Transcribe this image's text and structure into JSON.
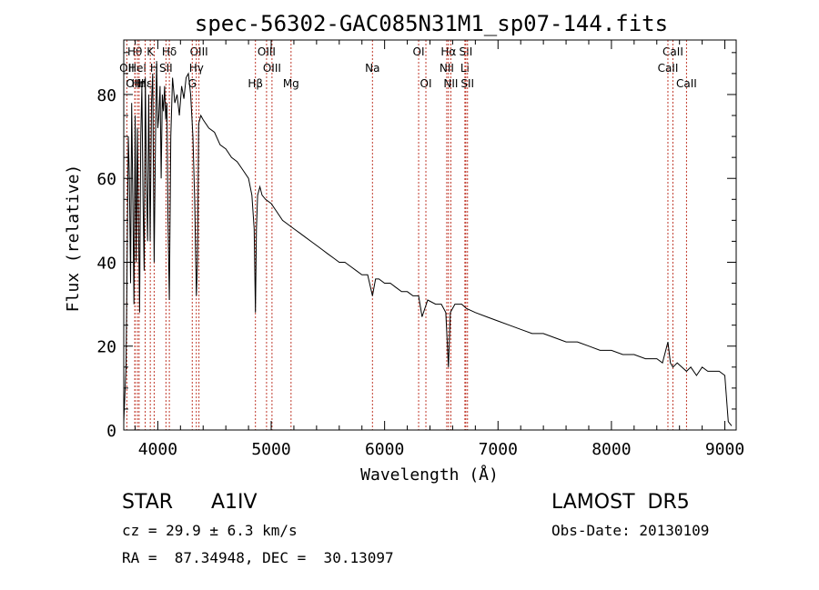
{
  "chart_data": {
    "type": "line",
    "title": "spec-56302-GAC085N31M1_sp07-144.fits",
    "xlabel": "Wavelength (Å)",
    "ylabel": "Flux (relative)",
    "xlim": [
      3700,
      9100
    ],
    "ylim": [
      0,
      93
    ],
    "x_ticks": [
      4000,
      5000,
      6000,
      7000,
      8000,
      9000
    ],
    "y_ticks": [
      0,
      20,
      40,
      60,
      80
    ],
    "grid": false,
    "series": [
      {
        "color": "#000000",
        "x": [
          3700,
          3720,
          3730,
          3740,
          3750,
          3760,
          3770,
          3780,
          3790,
          3800,
          3810,
          3820,
          3830,
          3840,
          3850,
          3860,
          3870,
          3880,
          3890,
          3900,
          3910,
          3920,
          3933,
          3945,
          3955,
          3968,
          3980,
          3990,
          4000,
          4010,
          4020,
          4030,
          4040,
          4050,
          4060,
          4070,
          4080,
          4090,
          4102,
          4115,
          4130,
          4150,
          4170,
          4190,
          4210,
          4230,
          4250,
          4270,
          4290,
          4310,
          4325,
          4340,
          4350,
          4360,
          4380,
          4400,
          4450,
          4500,
          4550,
          4600,
          4650,
          4700,
          4750,
          4800,
          4830,
          4850,
          4861,
          4870,
          4880,
          4900,
          4920,
          4950,
          5000,
          5050,
          5100,
          5150,
          5200,
          5250,
          5300,
          5350,
          5400,
          5450,
          5500,
          5550,
          5600,
          5650,
          5700,
          5750,
          5800,
          5850,
          5893,
          5920,
          5950,
          6000,
          6050,
          6100,
          6150,
          6200,
          6250,
          6300,
          6330,
          6380,
          6450,
          6500,
          6540,
          6563,
          6580,
          6620,
          6680,
          6720,
          6800,
          6900,
          7000,
          7100,
          7200,
          7300,
          7400,
          7500,
          7600,
          7700,
          7800,
          7900,
          8000,
          8100,
          8200,
          8300,
          8400,
          8450,
          8498,
          8520,
          8542,
          8580,
          8620,
          8662,
          8700,
          8750,
          8800,
          8850,
          8900,
          8950,
          9000,
          9030,
          9060
        ],
        "y": [
          2,
          15,
          40,
          70,
          60,
          35,
          78,
          55,
          30,
          75,
          40,
          72,
          50,
          28,
          70,
          82,
          55,
          38,
          84,
          60,
          45,
          80,
          45,
          78,
          85,
          40,
          70,
          88,
          72,
          75,
          82,
          60,
          80,
          76,
          82,
          74,
          78,
          50,
          31,
          70,
          84,
          78,
          80,
          75,
          82,
          79,
          84,
          85,
          80,
          70,
          55,
          32,
          40,
          73,
          75,
          74,
          72,
          71,
          68,
          67,
          65,
          64,
          62,
          60,
          56,
          48,
          28,
          48,
          56,
          58,
          56,
          55,
          54,
          52,
          50,
          49,
          48,
          47,
          46,
          45,
          44,
          43,
          42,
          41,
          40,
          40,
          39,
          38,
          37,
          37,
          32,
          36,
          36,
          35,
          35,
          34,
          33,
          33,
          32,
          32,
          27,
          31,
          30,
          30,
          28,
          15,
          28,
          30,
          30,
          29,
          28,
          27,
          26,
          25,
          24,
          23,
          23,
          22,
          21,
          21,
          20,
          19,
          19,
          18,
          18,
          17,
          17,
          16,
          21,
          16,
          15,
          16,
          15,
          14,
          15,
          13,
          15,
          14,
          14,
          14,
          13,
          2,
          1
        ]
      }
    ],
    "lines": [
      {
        "label": "OII",
        "wavelength": 3727,
        "row": 1
      },
      {
        "label": "Hθ",
        "wavelength": 3798,
        "row": 0
      },
      {
        "label": "OIII",
        "wavelength": 3799,
        "row": 2
      },
      {
        "label": "HeI",
        "wavelength": 3820,
        "row": 1
      },
      {
        "label": "Hη",
        "wavelength": 3835,
        "row": 2
      },
      {
        "label": "Hε",
        "wavelength": 3889,
        "row": 2
      },
      {
        "label": "K",
        "wavelength": 3934,
        "row": 0
      },
      {
        "label": "H",
        "wavelength": 3968,
        "row": 1
      },
      {
        "label": "Hδ",
        "wavelength": 4102,
        "row": 0
      },
      {
        "label": "SII",
        "wavelength": 4072,
        "row": 1
      },
      {
        "label": "OIII",
        "wavelength": 4363,
        "row": 0
      },
      {
        "label": "Hγ",
        "wavelength": 4340,
        "row": 1
      },
      {
        "label": "G",
        "wavelength": 4304,
        "row": 2
      },
      {
        "label": "OIII",
        "wavelength": 4959,
        "row": 0
      },
      {
        "label": "OIII",
        "wavelength": 5007,
        "row": 1
      },
      {
        "label": "Hβ",
        "wavelength": 4861,
        "row": 2
      },
      {
        "label": "Mg",
        "wavelength": 5175,
        "row": 2
      },
      {
        "label": "Na",
        "wavelength": 5893,
        "row": 1
      },
      {
        "label": "OI",
        "wavelength": 6300,
        "row": 0
      },
      {
        "label": "OI",
        "wavelength": 6364,
        "row": 2
      },
      {
        "label": "Hα",
        "wavelength": 6563,
        "row": 0
      },
      {
        "label": "SII",
        "wavelength": 6716,
        "row": 0
      },
      {
        "label": "NII",
        "wavelength": 6548,
        "row": 1
      },
      {
        "label": "Li",
        "wavelength": 6708,
        "row": 1
      },
      {
        "label": "NII",
        "wavelength": 6584,
        "row": 2
      },
      {
        "label": "SII",
        "wavelength": 6731,
        "row": 2
      },
      {
        "label": "CaII",
        "wavelength": 8542,
        "row": 0
      },
      {
        "label": "CaII",
        "wavelength": 8498,
        "row": 1
      },
      {
        "label": "CaII",
        "wavelength": 8662,
        "row": 2
      }
    ]
  },
  "info": {
    "class_label": "STAR",
    "subclass": "A1IV",
    "survey": "LAMOST  DR5",
    "cz": "cz = 29.9 ± 6.3 km/s",
    "obs_date": "Obs-Date: 20130109",
    "radec": "RA =  87.34948, DEC =  30.13097"
  },
  "colors": {
    "axes": "#000000",
    "spectrum": "#000000",
    "line_markers": "#c0392b"
  }
}
